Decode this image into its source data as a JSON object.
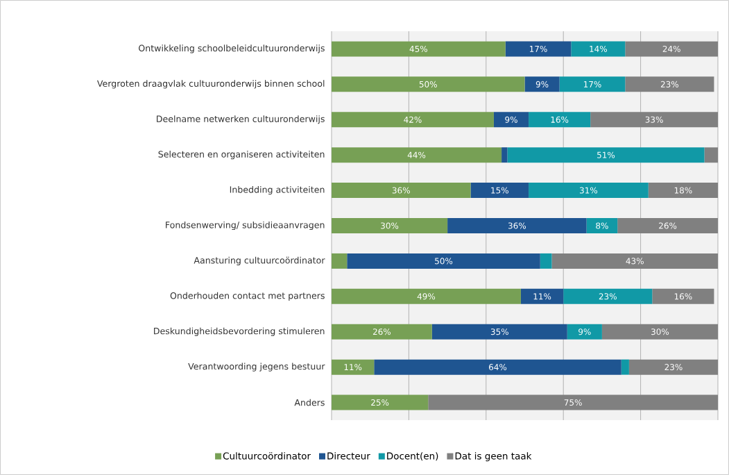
{
  "chart_data": {
    "type": "bar",
    "orientation": "horizontal",
    "stacked": true,
    "categories": [
      "Ontwikkeling schoolbeleidcultuuronderwijs",
      "Vergroten draagvlak cultuuronderwijs binnen school",
      "Deelname netwerken cultuuronderwijs",
      "Selecteren en organiseren activiteiten",
      "Inbedding activiteiten",
      "Fondsenwerving/ subsidieaanvragen",
      "Aansturing cultuurcoördinator",
      "Onderhouden contact met partners",
      "Deskundigheidsbevordering stimuleren",
      "Verantwoording jegens bestuur",
      "Anders"
    ],
    "series": [
      {
        "name": "Cultuurcoördinator",
        "color": "#77a055",
        "values": [
          45,
          50,
          42,
          44,
          36,
          30,
          4,
          49,
          26,
          11,
          25
        ],
        "value_labels": [
          "45%",
          "50%",
          "42%",
          "44%",
          "36%",
          "30%",
          null,
          "49%",
          "26%",
          "11%",
          "25%"
        ]
      },
      {
        "name": "Directeur",
        "color": "#1f5591",
        "values": [
          17,
          9,
          9,
          1.5,
          15,
          36,
          50,
          11,
          35,
          64,
          0
        ],
        "value_labels": [
          "17%",
          "9%",
          "9%",
          null,
          "15%",
          "36%",
          "50%",
          "11%",
          "35%",
          "64%",
          null
        ]
      },
      {
        "name": "Docent(en)",
        "color": "#1199a6",
        "values": [
          14,
          17,
          16,
          51,
          31,
          8,
          3,
          23,
          9,
          2,
          0
        ],
        "value_labels": [
          "14%",
          "17%",
          "16%",
          "51%",
          "31%",
          "8%",
          null,
          "23%",
          "9%",
          null,
          null
        ]
      },
      {
        "name": "Dat is geen taak",
        "color": "#808080",
        "values": [
          24,
          23,
          33,
          3.5,
          18,
          26,
          43,
          16,
          30,
          23,
          75
        ],
        "value_labels": [
          "24%",
          "23%",
          "33%",
          null,
          "18%",
          "26%",
          "43%",
          "16%",
          "30%",
          "23%",
          "75%"
        ]
      }
    ],
    "xlim": [
      0,
      100
    ],
    "xticks": [
      {
        "value": 0,
        "label": null
      },
      {
        "value": 20,
        "label": null
      },
      {
        "value": 40,
        "label": null
      },
      {
        "value": 60,
        "label": null
      },
      {
        "value": 80,
        "label": null
      },
      {
        "value": 100,
        "label": null
      }
    ],
    "tick_labels": "y",
    "grid": "x",
    "legend": "bottom"
  }
}
